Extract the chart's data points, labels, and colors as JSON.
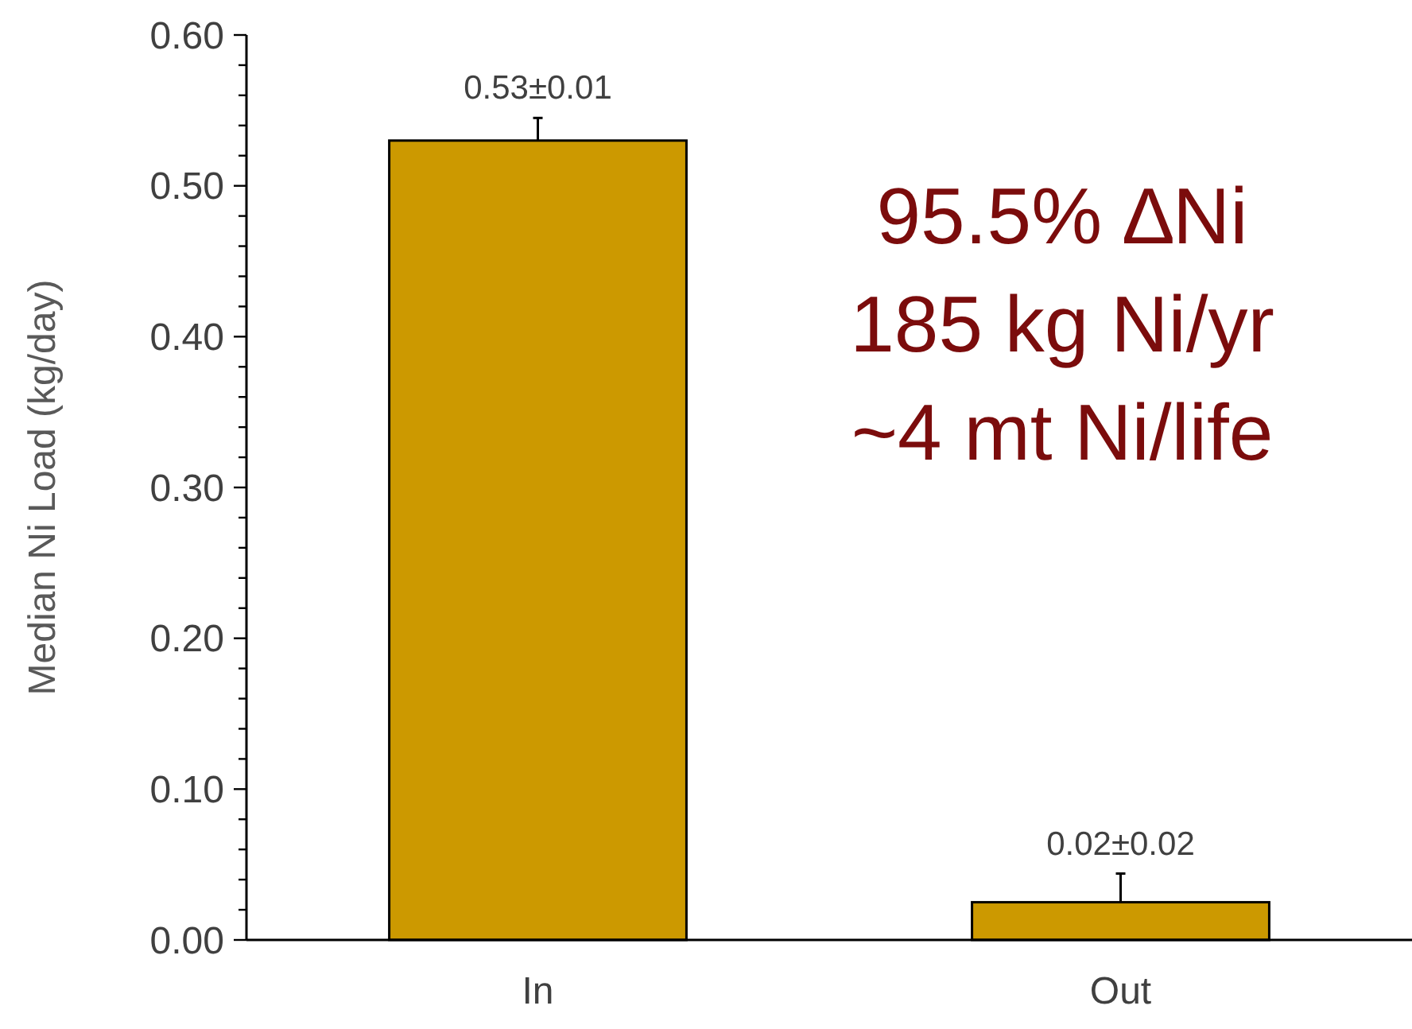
{
  "chart_data": {
    "type": "bar",
    "ylabel": "Median Ni Load (kg/day)",
    "categories": [
      "In",
      "Out"
    ],
    "values": [
      0.53,
      0.025
    ],
    "color": "#cc9900",
    "errors": [
      [
        0.53,
        0.545
      ],
      [
        0.025,
        0.044
      ]
    ],
    "value_labels": [
      "0.53±0.01",
      "0.02±0.02"
    ],
    "ylim": [
      0,
      0.6
    ],
    "yticks": [
      {
        "value": 0,
        "label": "0.00"
      },
      {
        "value": 0.02,
        "label": null
      },
      {
        "value": 0.04,
        "label": null
      },
      {
        "value": 0.06,
        "label": null
      },
      {
        "value": 0.08,
        "label": null
      },
      {
        "value": 0.1,
        "label": "0.10"
      },
      {
        "value": 0.12,
        "label": null
      },
      {
        "value": 0.14,
        "label": null
      },
      {
        "value": 0.16,
        "label": null
      },
      {
        "value": 0.18,
        "label": null
      },
      {
        "value": 0.2,
        "label": "0.20"
      },
      {
        "value": 0.22,
        "label": null
      },
      {
        "value": 0.24,
        "label": null
      },
      {
        "value": 0.26,
        "label": null
      },
      {
        "value": 0.28,
        "label": null
      },
      {
        "value": 0.3,
        "label": "0.30"
      },
      {
        "value": 0.32,
        "label": null
      },
      {
        "value": 0.34,
        "label": null
      },
      {
        "value": 0.36,
        "label": null
      },
      {
        "value": 0.38,
        "label": null
      },
      {
        "value": 0.4,
        "label": "0.40"
      },
      {
        "value": 0.42,
        "label": null
      },
      {
        "value": 0.44,
        "label": null
      },
      {
        "value": 0.46,
        "label": null
      },
      {
        "value": 0.48,
        "label": null
      },
      {
        "value": 0.5,
        "label": "0.50"
      },
      {
        "value": 0.52,
        "label": null
      },
      {
        "value": 0.54,
        "label": null
      },
      {
        "value": 0.56,
        "label": null
      },
      {
        "value": 0.58,
        "label": null
      },
      {
        "value": 0.6,
        "label": "0.60"
      }
    ],
    "annotations": [
      "95.5% ∆Ni",
      "185 kg Ni/yr",
      "~4 mt Ni/life"
    ]
  }
}
